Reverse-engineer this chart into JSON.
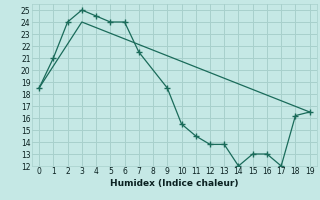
{
  "xlabel": "Humidex (Indice chaleur)",
  "bg_color": "#c5e8e5",
  "grid_color": "#a8d0cc",
  "line_color": "#1a6b5a",
  "line1_x": [
    0,
    1,
    2,
    3,
    4,
    5,
    6,
    7,
    9,
    10,
    11,
    12,
    13,
    14,
    15,
    16,
    17,
    18,
    19
  ],
  "line1_y": [
    18.5,
    21.0,
    24.0,
    25.0,
    24.5,
    24.0,
    24.0,
    21.5,
    18.5,
    15.5,
    14.5,
    13.8,
    13.8,
    12.0,
    13.0,
    13.0,
    12.0,
    16.2,
    16.5
  ],
  "line2_x": [
    0,
    3,
    19
  ],
  "line2_y": [
    18.5,
    24.0,
    16.5
  ],
  "xlim": [
    -0.5,
    19.5
  ],
  "ylim": [
    12,
    25.5
  ],
  "xticks": [
    0,
    1,
    2,
    3,
    4,
    5,
    6,
    7,
    8,
    9,
    10,
    11,
    12,
    13,
    14,
    15,
    16,
    17,
    18,
    19
  ],
  "yticks": [
    12,
    13,
    14,
    15,
    16,
    17,
    18,
    19,
    20,
    21,
    22,
    23,
    24,
    25
  ],
  "xlabel_fontsize": 6.5,
  "tick_fontsize": 5.5
}
